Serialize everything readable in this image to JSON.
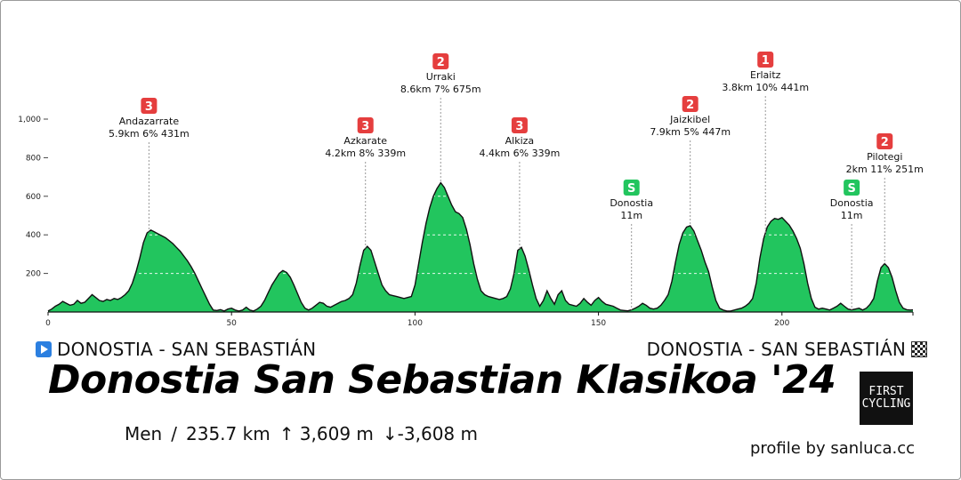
{
  "chart_data": {
    "type": "area",
    "xlim": [
      0,
      235.7
    ],
    "ylim": [
      0,
      1100
    ],
    "x_ticks": [
      0,
      50,
      100,
      150,
      200
    ],
    "y_ticks": [
      200,
      400,
      600,
      800,
      1000
    ],
    "y_tick_labels": [
      "200",
      "400",
      "600",
      "800",
      "1,000"
    ],
    "fill_color": "#22c55e",
    "line_color": "#111111",
    "profile": [
      [
        0,
        5
      ],
      [
        1,
        15
      ],
      [
        2,
        30
      ],
      [
        3,
        40
      ],
      [
        4,
        55
      ],
      [
        5,
        45
      ],
      [
        6,
        35
      ],
      [
        7,
        40
      ],
      [
        8,
        60
      ],
      [
        9,
        45
      ],
      [
        10,
        50
      ],
      [
        11,
        70
      ],
      [
        12,
        90
      ],
      [
        13,
        75
      ],
      [
        14,
        60
      ],
      [
        15,
        55
      ],
      [
        16,
        65
      ],
      [
        17,
        60
      ],
      [
        18,
        70
      ],
      [
        19,
        65
      ],
      [
        20,
        75
      ],
      [
        21,
        90
      ],
      [
        22,
        110
      ],
      [
        23,
        150
      ],
      [
        24,
        210
      ],
      [
        25,
        280
      ],
      [
        26,
        360
      ],
      [
        27,
        410
      ],
      [
        28,
        425
      ],
      [
        29,
        415
      ],
      [
        30,
        405
      ],
      [
        31,
        395
      ],
      [
        32,
        385
      ],
      [
        33,
        370
      ],
      [
        34,
        355
      ],
      [
        35,
        335
      ],
      [
        36,
        315
      ],
      [
        37,
        290
      ],
      [
        38,
        265
      ],
      [
        39,
        235
      ],
      [
        40,
        200
      ],
      [
        41,
        160
      ],
      [
        42,
        120
      ],
      [
        43,
        80
      ],
      [
        44,
        40
      ],
      [
        45,
        10
      ],
      [
        46,
        8
      ],
      [
        47,
        12
      ],
      [
        48,
        5
      ],
      [
        49,
        15
      ],
      [
        50,
        20
      ],
      [
        51,
        10
      ],
      [
        52,
        5
      ],
      [
        53,
        10
      ],
      [
        54,
        25
      ],
      [
        55,
        10
      ],
      [
        56,
        5
      ],
      [
        57,
        15
      ],
      [
        58,
        30
      ],
      [
        59,
        60
      ],
      [
        60,
        100
      ],
      [
        61,
        140
      ],
      [
        62,
        170
      ],
      [
        63,
        200
      ],
      [
        64,
        215
      ],
      [
        65,
        205
      ],
      [
        66,
        180
      ],
      [
        67,
        140
      ],
      [
        68,
        95
      ],
      [
        69,
        50
      ],
      [
        70,
        20
      ],
      [
        71,
        10
      ],
      [
        72,
        20
      ],
      [
        73,
        35
      ],
      [
        74,
        50
      ],
      [
        75,
        45
      ],
      [
        76,
        30
      ],
      [
        77,
        25
      ],
      [
        78,
        35
      ],
      [
        79,
        45
      ],
      [
        80,
        55
      ],
      [
        81,
        60
      ],
      [
        82,
        70
      ],
      [
        83,
        90
      ],
      [
        84,
        150
      ],
      [
        85,
        240
      ],
      [
        86,
        320
      ],
      [
        87,
        340
      ],
      [
        88,
        320
      ],
      [
        89,
        260
      ],
      [
        90,
        200
      ],
      [
        91,
        140
      ],
      [
        92,
        110
      ],
      [
        93,
        90
      ],
      [
        94,
        85
      ],
      [
        95,
        80
      ],
      [
        96,
        75
      ],
      [
        97,
        70
      ],
      [
        98,
        75
      ],
      [
        99,
        80
      ],
      [
        100,
        140
      ],
      [
        101,
        250
      ],
      [
        102,
        360
      ],
      [
        103,
        460
      ],
      [
        104,
        540
      ],
      [
        105,
        600
      ],
      [
        106,
        640
      ],
      [
        107,
        670
      ],
      [
        108,
        645
      ],
      [
        109,
        600
      ],
      [
        110,
        555
      ],
      [
        111,
        520
      ],
      [
        112,
        510
      ],
      [
        113,
        490
      ],
      [
        114,
        430
      ],
      [
        115,
        350
      ],
      [
        116,
        250
      ],
      [
        117,
        170
      ],
      [
        118,
        110
      ],
      [
        119,
        90
      ],
      [
        120,
        80
      ],
      [
        121,
        75
      ],
      [
        122,
        70
      ],
      [
        123,
        65
      ],
      [
        124,
        70
      ],
      [
        125,
        80
      ],
      [
        126,
        120
      ],
      [
        127,
        200
      ],
      [
        128,
        320
      ],
      [
        129,
        335
      ],
      [
        130,
        290
      ],
      [
        131,
        220
      ],
      [
        132,
        140
      ],
      [
        133,
        70
      ],
      [
        134,
        30
      ],
      [
        135,
        60
      ],
      [
        136,
        110
      ],
      [
        137,
        70
      ],
      [
        138,
        40
      ],
      [
        139,
        90
      ],
      [
        140,
        110
      ],
      [
        141,
        60
      ],
      [
        142,
        40
      ],
      [
        143,
        35
      ],
      [
        144,
        30
      ],
      [
        145,
        45
      ],
      [
        146,
        70
      ],
      [
        147,
        50
      ],
      [
        148,
        35
      ],
      [
        149,
        60
      ],
      [
        150,
        75
      ],
      [
        151,
        55
      ],
      [
        152,
        40
      ],
      [
        153,
        35
      ],
      [
        154,
        30
      ],
      [
        155,
        20
      ],
      [
        156,
        10
      ],
      [
        157,
        8
      ],
      [
        158,
        6
      ],
      [
        159,
        11
      ],
      [
        160,
        20
      ],
      [
        161,
        30
      ],
      [
        162,
        45
      ],
      [
        163,
        35
      ],
      [
        164,
        20
      ],
      [
        165,
        15
      ],
      [
        166,
        20
      ],
      [
        167,
        35
      ],
      [
        168,
        60
      ],
      [
        169,
        90
      ],
      [
        170,
        160
      ],
      [
        171,
        260
      ],
      [
        172,
        350
      ],
      [
        173,
        410
      ],
      [
        174,
        440
      ],
      [
        175,
        447
      ],
      [
        176,
        420
      ],
      [
        177,
        370
      ],
      [
        178,
        320
      ],
      [
        179,
        260
      ],
      [
        180,
        210
      ],
      [
        181,
        130
      ],
      [
        182,
        60
      ],
      [
        183,
        20
      ],
      [
        184,
        10
      ],
      [
        185,
        5
      ],
      [
        186,
        5
      ],
      [
        187,
        10
      ],
      [
        188,
        15
      ],
      [
        189,
        20
      ],
      [
        190,
        30
      ],
      [
        191,
        45
      ],
      [
        192,
        70
      ],
      [
        193,
        150
      ],
      [
        194,
        280
      ],
      [
        195,
        380
      ],
      [
        196,
        441
      ],
      [
        197,
        470
      ],
      [
        198,
        485
      ],
      [
        199,
        480
      ],
      [
        200,
        490
      ],
      [
        201,
        470
      ],
      [
        202,
        450
      ],
      [
        203,
        420
      ],
      [
        204,
        380
      ],
      [
        205,
        330
      ],
      [
        206,
        250
      ],
      [
        207,
        150
      ],
      [
        208,
        70
      ],
      [
        209,
        25
      ],
      [
        210,
        15
      ],
      [
        211,
        20
      ],
      [
        212,
        15
      ],
      [
        213,
        10
      ],
      [
        214,
        20
      ],
      [
        215,
        30
      ],
      [
        216,
        45
      ],
      [
        217,
        30
      ],
      [
        218,
        15
      ],
      [
        219,
        11
      ],
      [
        220,
        15
      ],
      [
        221,
        20
      ],
      [
        222,
        10
      ],
      [
        223,
        20
      ],
      [
        224,
        40
      ],
      [
        225,
        70
      ],
      [
        226,
        160
      ],
      [
        227,
        230
      ],
      [
        228,
        251
      ],
      [
        229,
        230
      ],
      [
        230,
        180
      ],
      [
        231,
        110
      ],
      [
        232,
        50
      ],
      [
        233,
        20
      ],
      [
        234,
        12
      ],
      [
        235,
        10
      ],
      [
        235.7,
        11
      ]
    ],
    "climbs": [
      {
        "category": "3",
        "name": "Andazarrate",
        "stats": "5.9km 6% 431m",
        "km": 27.5,
        "elev": 431,
        "label_top": true,
        "color": "#e53e3e"
      },
      {
        "category": "3",
        "name": "Azkarate",
        "stats": "4.2km 8% 339m",
        "km": 86.5,
        "elev": 339,
        "color": "#e53e3e"
      },
      {
        "category": "2",
        "name": "Urraki",
        "stats": "8.6km 7% 675m",
        "km": 107,
        "elev": 675,
        "color": "#e53e3e"
      },
      {
        "category": "3",
        "name": "Alkiza",
        "stats": "4.4km 6% 339m",
        "km": 128.5,
        "elev": 339,
        "color": "#e53e3e"
      },
      {
        "category": "S",
        "name": "Donostia",
        "stats": "11m",
        "km": 159,
        "elev": 11,
        "color": "#22c55e"
      },
      {
        "category": "2",
        "name": "Jaizkibel",
        "stats": "7.9km 5% 447m",
        "km": 175,
        "elev": 447,
        "color": "#e53e3e"
      },
      {
        "category": "1",
        "name": "Erlaitz",
        "stats": "3.8km 10% 441m",
        "km": 195.5,
        "elev": 441,
        "color": "#e53e3e"
      },
      {
        "category": "S",
        "name": "Donostia",
        "stats": "11m",
        "km": 219,
        "elev": 11,
        "color": "#22c55e"
      },
      {
        "category": "2",
        "name": "Pilotegi",
        "stats": "2km 11% 251m",
        "km": 228,
        "elev": 251,
        "color": "#e53e3e"
      }
    ]
  },
  "start": "DONOSTIA - SAN SEBASTIÁN",
  "finish": "DONOSTIA - SAN SEBASTIÁN",
  "title": "Donostia San Sebastian Klasikoa '24",
  "stats": {
    "category": "Men",
    "separator": "/",
    "distance": "235.7 km",
    "ascent": "↑ 3,609 m",
    "descent": "↓-3,608 m"
  },
  "logo": {
    "line1": "FIRST",
    "line2": "CYCLING"
  },
  "credit": "profile by sanluca.cc"
}
